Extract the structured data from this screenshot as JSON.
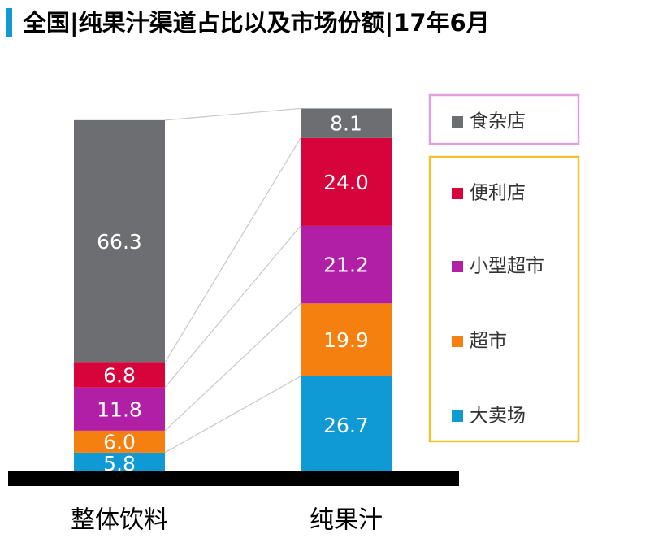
{
  "chart_data": {
    "type": "stacked_bar",
    "title": "全国|纯果汁渠道占比以及市场份额|17年6月",
    "categories": [
      "整体饮料",
      "纯果汁"
    ],
    "series": [
      {
        "name": "大卖场",
        "color": "#0f9ad6",
        "values": [
          5.8,
          26.7
        ],
        "value_labels": [
          "5.8",
          "26.7"
        ]
      },
      {
        "name": "超市",
        "color": "#f57f0f",
        "values": [
          6.0,
          19.9
        ],
        "value_labels": [
          "6.0",
          "19.9"
        ]
      },
      {
        "name": "小型超市",
        "color": "#b01fa6",
        "values": [
          11.8,
          21.2
        ],
        "value_labels": [
          "11.8",
          "21.2"
        ]
      },
      {
        "name": "便利店",
        "color": "#d6043b",
        "values": [
          6.8,
          24.0
        ],
        "value_labels": [
          "6.8",
          "24.0"
        ]
      },
      {
        "name": "食杂店",
        "color": "#6d6e71",
        "values": [
          66.3,
          8.1
        ],
        "value_labels": [
          "66.3",
          "8.1"
        ]
      }
    ],
    "ylim": [
      0,
      100
    ]
  }
}
